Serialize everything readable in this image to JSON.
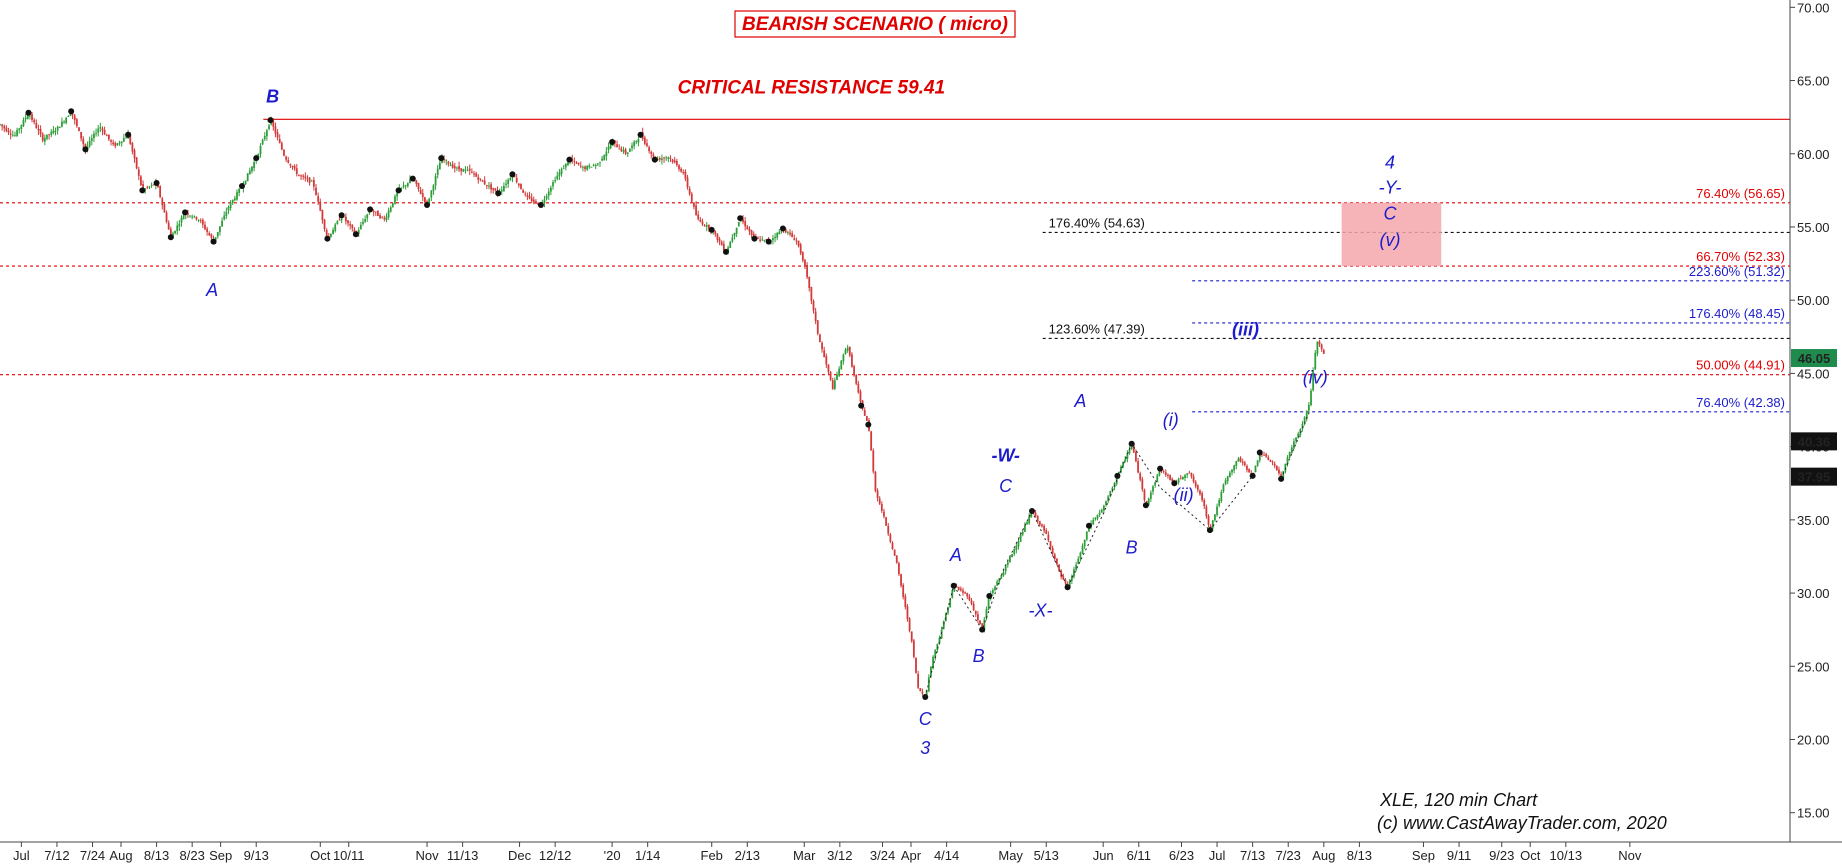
{
  "chart_data": {
    "type": "candlestick",
    "symbol": "XLE",
    "credit_lines": [
      "XLE, 120 min Chart",
      "(c) www.CastAwayTrader.com, 2020"
    ],
    "title": "BEARISH SCENARIO ( micro)",
    "ylim": [
      13,
      70.5
    ],
    "y_ticks": [
      15,
      20,
      25,
      30,
      35,
      40,
      45,
      50,
      55,
      60,
      65,
      70
    ],
    "y_tick_labels": [
      "15.00",
      "20.00",
      "25.00",
      "30.00",
      "35.00",
      "40.00",
      "45.00",
      "50.00",
      "55.00",
      "60.00",
      "65.00",
      "70.00"
    ],
    "x_ticks": [
      {
        "t": 3,
        "label": "Jul"
      },
      {
        "t": 8,
        "label": "7/12"
      },
      {
        "t": 13,
        "label": "7/24"
      },
      {
        "t": 17,
        "label": "Aug"
      },
      {
        "t": 22,
        "label": "8/13"
      },
      {
        "t": 27,
        "label": "8/23"
      },
      {
        "t": 31,
        "label": "Sep"
      },
      {
        "t": 36,
        "label": "9/13"
      },
      {
        "t": 45,
        "label": "Oct"
      },
      {
        "t": 49,
        "label": "10/11"
      },
      {
        "t": 60,
        "label": "Nov"
      },
      {
        "t": 65,
        "label": "11/13"
      },
      {
        "t": 73,
        "label": "Dec"
      },
      {
        "t": 78,
        "label": "12/12"
      },
      {
        "t": 86,
        "label": "'20"
      },
      {
        "t": 91,
        "label": "1/14"
      },
      {
        "t": 100,
        "label": "Feb"
      },
      {
        "t": 105,
        "label": "2/13"
      },
      {
        "t": 113,
        "label": "Mar"
      },
      {
        "t": 118,
        "label": "3/12"
      },
      {
        "t": 124,
        "label": "3/24"
      },
      {
        "t": 128,
        "label": "Apr"
      },
      {
        "t": 133,
        "label": "4/14"
      },
      {
        "t": 142,
        "label": "May"
      },
      {
        "t": 147,
        "label": "5/13"
      },
      {
        "t": 155,
        "label": "Jun"
      },
      {
        "t": 160,
        "label": "6/11"
      },
      {
        "t": 166,
        "label": "6/23"
      },
      {
        "t": 171,
        "label": "Jul"
      },
      {
        "t": 176,
        "label": "7/13"
      },
      {
        "t": 181,
        "label": "7/23"
      },
      {
        "t": 186,
        "label": "Aug"
      },
      {
        "t": 191,
        "label": "8/13"
      },
      {
        "t": 200,
        "label": "Sep"
      },
      {
        "t": 205,
        "label": "9/11"
      },
      {
        "t": 211,
        "label": "9/23"
      },
      {
        "t": 215,
        "label": "Oct"
      },
      {
        "t": 220,
        "label": "10/13"
      },
      {
        "t": 229,
        "label": "Nov"
      }
    ],
    "price_anchors": [
      [
        0,
        62.0
      ],
      [
        2,
        61.2
      ],
      [
        4,
        62.8
      ],
      [
        6,
        61.0
      ],
      [
        8,
        61.7
      ],
      [
        10,
        62.9
      ],
      [
        12,
        60.3
      ],
      [
        14,
        61.9
      ],
      [
        16,
        60.5
      ],
      [
        18,
        61.3
      ],
      [
        20,
        57.5
      ],
      [
        22,
        58.0
      ],
      [
        24,
        54.3
      ],
      [
        26,
        56.0
      ],
      [
        28,
        55.5
      ],
      [
        30,
        54.0
      ],
      [
        32,
        56.3
      ],
      [
        34,
        57.8
      ],
      [
        36,
        59.7
      ],
      [
        38,
        62.3
      ],
      [
        40,
        59.8
      ],
      [
        42,
        58.5
      ],
      [
        44,
        58.0
      ],
      [
        46,
        54.2
      ],
      [
        48,
        55.8
      ],
      [
        50,
        54.5
      ],
      [
        52,
        56.2
      ],
      [
        54,
        55.5
      ],
      [
        56,
        57.5
      ],
      [
        58,
        58.3
      ],
      [
        60,
        56.5
      ],
      [
        62,
        59.7
      ],
      [
        64,
        59.0
      ],
      [
        66,
        58.8
      ],
      [
        68,
        58.0
      ],
      [
        70,
        57.3
      ],
      [
        72,
        58.6
      ],
      [
        74,
        57.0
      ],
      [
        76,
        56.5
      ],
      [
        78,
        58.3
      ],
      [
        80,
        59.6
      ],
      [
        82,
        59.0
      ],
      [
        84,
        59.3
      ],
      [
        86,
        60.8
      ],
      [
        88,
        60.0
      ],
      [
        90,
        61.3
      ],
      [
        92,
        59.6
      ],
      [
        94,
        59.8
      ],
      [
        96,
        58.7
      ],
      [
        98,
        55.5
      ],
      [
        100,
        54.8
      ],
      [
        102,
        53.3
      ],
      [
        104,
        55.6
      ],
      [
        106,
        54.2
      ],
      [
        108,
        54.0
      ],
      [
        110,
        54.9
      ],
      [
        112,
        54.0
      ],
      [
        113,
        52.5
      ],
      [
        115,
        47.5
      ],
      [
        117,
        44.0
      ],
      [
        119,
        47.0
      ],
      [
        121,
        42.8
      ],
      [
        122,
        41.5
      ],
      [
        123,
        37.0
      ],
      [
        124,
        35.5
      ],
      [
        126,
        32.0
      ],
      [
        128,
        27.0
      ],
      [
        129,
        23.5
      ],
      [
        130,
        22.9
      ],
      [
        131,
        25.5
      ],
      [
        132,
        27.0
      ],
      [
        134,
        30.5
      ],
      [
        136,
        29.8
      ],
      [
        138,
        27.5
      ],
      [
        139,
        29.8
      ],
      [
        141,
        31.5
      ],
      [
        143,
        33.5
      ],
      [
        145,
        35.6
      ],
      [
        147,
        34.0
      ],
      [
        149,
        31.2
      ],
      [
        150,
        30.4
      ],
      [
        152,
        33.0
      ],
      [
        153,
        34.6
      ],
      [
        155,
        35.8
      ],
      [
        157,
        38.0
      ],
      [
        159,
        40.2
      ],
      [
        161,
        36.0
      ],
      [
        163,
        38.5
      ],
      [
        165,
        37.5
      ],
      [
        167,
        38.3
      ],
      [
        169,
        36.3
      ],
      [
        170,
        34.3
      ],
      [
        172,
        37.5
      ],
      [
        174,
        39.2
      ],
      [
        176,
        38.0
      ],
      [
        177,
        39.6
      ],
      [
        179,
        38.8
      ],
      [
        180,
        37.8
      ],
      [
        181,
        39.5
      ],
      [
        183,
        41.5
      ],
      [
        184,
        43.0
      ],
      [
        185,
        47.3
      ],
      [
        186,
        46.3
      ]
    ],
    "fib_lines": [
      {
        "y": 62.35,
        "color": "#e00000",
        "dash": false,
        "x0": 37,
        "x1": 251.5
      },
      {
        "y": 56.65,
        "color": "#e00000",
        "dash": true,
        "x0": 0,
        "x1": 251.5,
        "label": "76.40% (56.65)"
      },
      {
        "y": 54.63,
        "color": "#111111",
        "dash": true,
        "x0": 146.5,
        "x1": 251.5,
        "label": "176.40% (54.63)",
        "label_side": "left"
      },
      {
        "y": 52.33,
        "color": "#e00000",
        "dash": true,
        "x0": 0,
        "x1": 251.5,
        "label": "66.70% (52.33)"
      },
      {
        "y": 51.32,
        "color": "#1c1ccc",
        "dash": true,
        "x0": 167.5,
        "x1": 251.5,
        "label": "223.60% (51.32)"
      },
      {
        "y": 48.45,
        "color": "#1c1ccc",
        "dash": true,
        "x0": 167.5,
        "x1": 251.5,
        "label": "176.40% (48.45)"
      },
      {
        "y": 47.39,
        "color": "#111111",
        "dash": true,
        "x0": 146.5,
        "x1": 251.5,
        "label": "123.60% (47.39)",
        "label_side": "left"
      },
      {
        "y": 44.91,
        "color": "#e00000",
        "dash": true,
        "x0": 0,
        "x1": 251.5,
        "label": "50.00% (44.91)"
      },
      {
        "y": 42.38,
        "color": "#1c1ccc",
        "dash": true,
        "x0": 167.5,
        "x1": 251.5,
        "label": "76.40% (42.38)"
      }
    ],
    "target_zone": {
      "t0": 188.5,
      "t1": 202.5,
      "y0": 52.33,
      "y1": 56.65,
      "color": "#f4a6ac"
    },
    "resistance_label": {
      "text": "CRITICAL RESISTANCE 59.41",
      "t": 114,
      "y": 64.1
    },
    "price_flags": [
      {
        "y": 46.05,
        "label": "46.05",
        "bg": "#1f8c4e",
        "fg": "#ffffff"
      },
      {
        "y": 40.36,
        "label": "40.36",
        "bg": "#111111",
        "fg": "#ffffff"
      },
      {
        "y": 37.95,
        "label": "37.95",
        "bg": "#111111",
        "fg": "#ffffff"
      }
    ],
    "wave_labels": [
      {
        "text": "B",
        "t": 38.3,
        "y": 63.5,
        "weight": "bold"
      },
      {
        "text": "A",
        "t": 29.8,
        "y": 50.3
      },
      {
        "text": "C",
        "t": 130.0,
        "y": 21.0
      },
      {
        "text": "3",
        "t": 130.0,
        "y": 19.0
      },
      {
        "text": "A",
        "t": 134.3,
        "y": 32.2
      },
      {
        "text": "B",
        "t": 137.5,
        "y": 25.3
      },
      {
        "text": "-W-",
        "t": 141.3,
        "y": 39.0,
        "weight": "bold"
      },
      {
        "text": "C",
        "t": 141.3,
        "y": 36.9
      },
      {
        "text": "-X-",
        "t": 146.2,
        "y": 28.4
      },
      {
        "text": "A",
        "t": 151.8,
        "y": 42.7
      },
      {
        "text": "B",
        "t": 159.0,
        "y": 32.7
      },
      {
        "text": "(i)",
        "t": 164.5,
        "y": 41.4
      },
      {
        "text": "(ii)",
        "t": 166.3,
        "y": 36.3
      },
      {
        "text": "(iii)",
        "t": 175.0,
        "y": 47.6,
        "weight": "bold"
      },
      {
        "text": "(iv)",
        "t": 184.8,
        "y": 44.3
      },
      {
        "text": "4",
        "t": 195.3,
        "y": 59.0
      },
      {
        "text": "-Y-",
        "t": 195.3,
        "y": 57.3
      },
      {
        "text": "C",
        "t": 195.3,
        "y": 55.5
      },
      {
        "text": "(v)",
        "t": 195.3,
        "y": 53.7
      }
    ],
    "swing_points": [
      [
        4,
        62.8
      ],
      [
        10,
        62.9
      ],
      [
        12,
        60.3
      ],
      [
        18,
        61.3
      ],
      [
        20,
        57.5
      ],
      [
        22,
        58.0
      ],
      [
        24,
        54.3
      ],
      [
        26,
        56.0
      ],
      [
        30,
        54.0
      ],
      [
        34,
        57.8
      ],
      [
        36,
        59.7
      ],
      [
        38,
        62.3
      ],
      [
        46,
        54.2
      ],
      [
        48,
        55.8
      ],
      [
        50,
        54.5
      ],
      [
        52,
        56.2
      ],
      [
        56,
        57.5
      ],
      [
        58,
        58.3
      ],
      [
        60,
        56.5
      ],
      [
        62,
        59.7
      ],
      [
        70,
        57.3
      ],
      [
        72,
        58.6
      ],
      [
        76,
        56.5
      ],
      [
        80,
        59.6
      ],
      [
        86,
        60.8
      ],
      [
        90,
        61.3
      ],
      [
        92,
        59.6
      ],
      [
        100,
        54.8
      ],
      [
        102,
        53.3
      ],
      [
        104,
        55.6
      ],
      [
        106,
        54.2
      ],
      [
        108,
        54.0
      ],
      [
        110,
        54.9
      ],
      [
        121,
        42.8
      ],
      [
        122,
        41.5
      ],
      [
        130,
        22.9
      ],
      [
        134,
        30.5
      ],
      [
        138,
        27.5
      ],
      [
        139,
        29.8
      ],
      [
        145,
        35.6
      ],
      [
        150,
        30.4
      ],
      [
        153,
        34.6
      ],
      [
        157,
        38.0
      ],
      [
        159,
        40.2
      ],
      [
        161,
        36.0
      ],
      [
        163,
        38.5
      ],
      [
        165,
        37.5
      ],
      [
        170,
        34.3
      ],
      [
        176,
        38.0
      ],
      [
        177,
        39.6
      ],
      [
        180,
        37.8
      ]
    ],
    "wave_paths": [
      [
        [
          130,
          22.9
        ],
        [
          134,
          30.5
        ],
        [
          138,
          27.5
        ],
        [
          141,
          31.6
        ],
        [
          145,
          35.6
        ]
      ],
      [
        [
          145,
          35.6
        ],
        [
          150,
          30.4
        ],
        [
          155,
          35.4
        ],
        [
          159,
          40.2
        ],
        [
          163,
          37.2
        ],
        [
          170,
          34.3
        ]
      ],
      [
        [
          170,
          34.3
        ],
        [
          176,
          38.0
        ]
      ],
      [
        [
          180,
          37.8
        ],
        [
          184,
          42.4
        ]
      ]
    ],
    "colors": {
      "up": "#2e9e3a",
      "down": "#d23a3a",
      "wave": "#1c1ccc",
      "resistance": "#e00000"
    }
  }
}
